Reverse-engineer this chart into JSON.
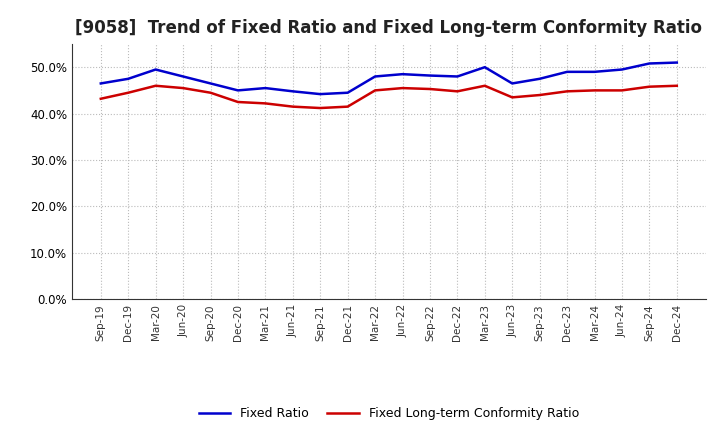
{
  "title": "[9058]  Trend of Fixed Ratio and Fixed Long-term Conformity Ratio",
  "x_labels": [
    "Sep-19",
    "Dec-19",
    "Mar-20",
    "Jun-20",
    "Sep-20",
    "Dec-20",
    "Mar-21",
    "Jun-21",
    "Sep-21",
    "Dec-21",
    "Mar-22",
    "Jun-22",
    "Sep-22",
    "Dec-22",
    "Mar-23",
    "Jun-23",
    "Sep-23",
    "Dec-23",
    "Mar-24",
    "Jun-24",
    "Sep-24",
    "Dec-24"
  ],
  "fixed_ratio": [
    46.5,
    47.5,
    49.5,
    48.0,
    46.5,
    45.0,
    45.5,
    44.8,
    44.2,
    44.5,
    48.0,
    48.5,
    48.2,
    48.0,
    50.0,
    46.5,
    47.5,
    49.0,
    49.0,
    49.5,
    50.8,
    51.0
  ],
  "fixed_lt_ratio": [
    43.2,
    44.5,
    46.0,
    45.5,
    44.5,
    42.5,
    42.2,
    41.5,
    41.2,
    41.5,
    45.0,
    45.5,
    45.3,
    44.8,
    46.0,
    43.5,
    44.0,
    44.8,
    45.0,
    45.0,
    45.8,
    46.0
  ],
  "fixed_ratio_color": "#0000CD",
  "fixed_lt_ratio_color": "#CC0000",
  "ylim": [
    0,
    55
  ],
  "yticks": [
    0.0,
    10.0,
    20.0,
    30.0,
    40.0,
    50.0
  ],
  "background_color": "#FFFFFF",
  "plot_bg_color": "#FFFFFF",
  "grid_color": "#BBBBBB",
  "title_fontsize": 12,
  "legend_labels": [
    "Fixed Ratio",
    "Fixed Long-term Conformity Ratio"
  ]
}
